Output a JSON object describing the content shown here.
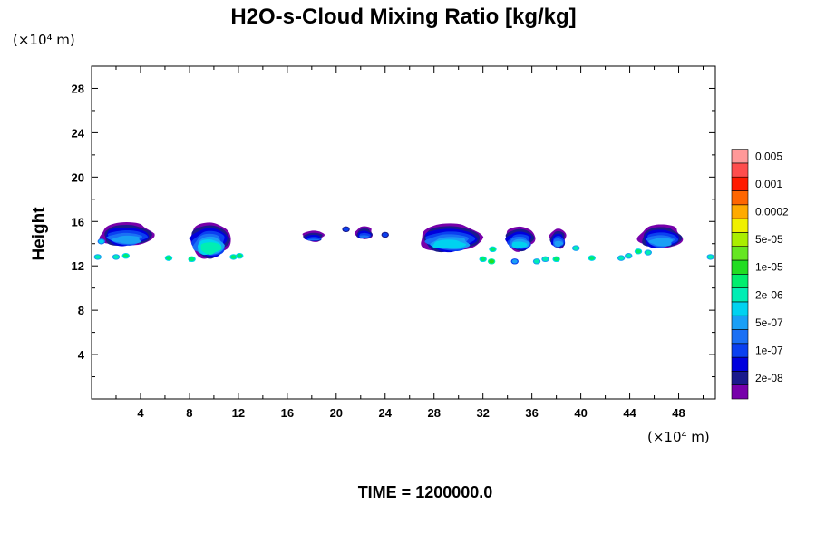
{
  "chart_data": {
    "type": "contour",
    "title": "H2O-s-Cloud Mixing Ratio [kg/kg]",
    "ylabel": "Height",
    "x_unit": "(×10⁴ m)",
    "y_unit": "(×10⁴ m)",
    "xlim": [
      0,
      51
    ],
    "ylim": [
      0,
      30
    ],
    "x_ticks": [
      4,
      8,
      12,
      16,
      20,
      24,
      28,
      32,
      36,
      40,
      44,
      48
    ],
    "y_ticks": [
      4,
      8,
      12,
      16,
      20,
      24,
      28
    ],
    "footer": "TIME = 1200000.0",
    "colorbar": {
      "colors": [
        "#7700aa",
        "#1a1a8c",
        "#0000dd",
        "#0a40f0",
        "#1a70f5",
        "#1a9ff5",
        "#00d2f0",
        "#00eeb4",
        "#00ee6e",
        "#22dd22",
        "#66e622",
        "#aaee00",
        "#f0f000",
        "#ffaa00",
        "#ff6600",
        "#ff1a00",
        "#ff4d4d",
        "#ff9999"
      ],
      "labels": [
        {
          "text": "2e-08",
          "level": 1
        },
        {
          "text": "1e-07",
          "level": 3
        },
        {
          "text": "5e-07",
          "level": 5
        },
        {
          "text": "2e-06",
          "level": 7
        },
        {
          "text": "1e-05",
          "level": 9
        },
        {
          "text": "5e-05",
          "level": 11
        },
        {
          "text": "0.0002",
          "level": 13
        },
        {
          "text": "0.001",
          "level": 15
        },
        {
          "text": "0.005",
          "level": 17
        }
      ]
    },
    "cloud_cells": [
      {
        "x": [
          0.7,
          5.0
        ],
        "top": 16.0,
        "base": 13.8,
        "core": 5
      },
      {
        "x": [
          8.0,
          11.3
        ],
        "top": 16.0,
        "base": 12.8,
        "core": 7
      },
      {
        "x": [
          17.3,
          19.0
        ],
        "top": 15.2,
        "base": 14.2,
        "core": 4
      },
      {
        "x": [
          21.6,
          23.0
        ],
        "top": 15.6,
        "base": 14.4,
        "core": 4
      },
      {
        "x": [
          26.8,
          31.8
        ],
        "top": 15.9,
        "base": 13.3,
        "core": 6
      },
      {
        "x": [
          33.8,
          36.2
        ],
        "top": 15.6,
        "base": 13.4,
        "core": 6
      },
      {
        "x": [
          37.5,
          38.8
        ],
        "top": 15.4,
        "base": 13.6,
        "core": 5
      },
      {
        "x": [
          44.8,
          48.3
        ],
        "top": 15.8,
        "base": 13.6,
        "core": 5
      }
    ],
    "small_patches": [
      {
        "x": 0.5,
        "y": 12.8,
        "level": 7
      },
      {
        "x": 0.8,
        "y": 14.2,
        "level": 6
      },
      {
        "x": 2.0,
        "y": 12.8,
        "level": 7
      },
      {
        "x": 2.8,
        "y": 12.9,
        "level": 8
      },
      {
        "x": 6.3,
        "y": 12.7,
        "level": 8
      },
      {
        "x": 8.2,
        "y": 12.6,
        "level": 8
      },
      {
        "x": 11.6,
        "y": 12.8,
        "level": 8
      },
      {
        "x": 12.1,
        "y": 12.9,
        "level": 8
      },
      {
        "x": 20.8,
        "y": 15.3,
        "level": 3
      },
      {
        "x": 24.0,
        "y": 14.8,
        "level": 3
      },
      {
        "x": 32.0,
        "y": 12.6,
        "level": 8
      },
      {
        "x": 32.7,
        "y": 12.4,
        "level": 9
      },
      {
        "x": 32.8,
        "y": 13.5,
        "level": 8
      },
      {
        "x": 34.6,
        "y": 12.4,
        "level": 5
      },
      {
        "x": 36.4,
        "y": 12.4,
        "level": 7
      },
      {
        "x": 37.1,
        "y": 12.6,
        "level": 7
      },
      {
        "x": 38.0,
        "y": 12.6,
        "level": 8
      },
      {
        "x": 39.6,
        "y": 13.6,
        "level": 7
      },
      {
        "x": 40.9,
        "y": 12.7,
        "level": 8
      },
      {
        "x": 43.3,
        "y": 12.7,
        "level": 7
      },
      {
        "x": 43.9,
        "y": 12.9,
        "level": 7
      },
      {
        "x": 44.7,
        "y": 13.3,
        "level": 8
      },
      {
        "x": 45.5,
        "y": 13.2,
        "level": 7
      },
      {
        "x": 50.6,
        "y": 12.8,
        "level": 7
      }
    ]
  }
}
